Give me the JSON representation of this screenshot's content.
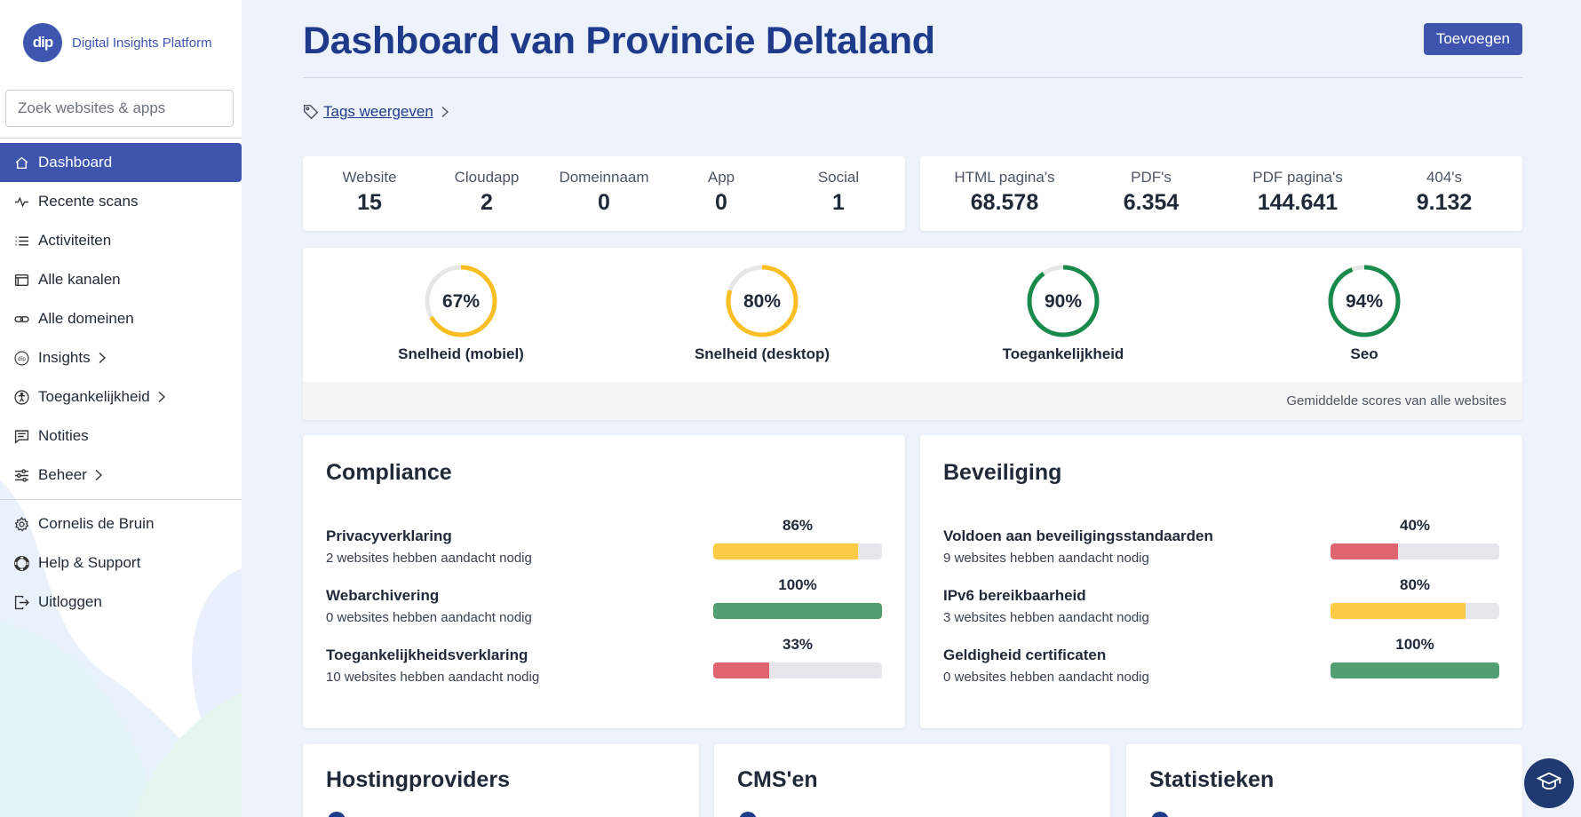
{
  "app": {
    "logo_text": "dip",
    "name": "Digital Insights Platform"
  },
  "search": {
    "placeholder": "Zoek websites & apps"
  },
  "sidebar": {
    "items": [
      {
        "label": "Dashboard",
        "icon": "home-icon",
        "active": true
      },
      {
        "label": "Recente scans",
        "icon": "activity-icon"
      },
      {
        "label": "Activiteiten",
        "icon": "list-icon"
      },
      {
        "label": "Alle kanalen",
        "icon": "browser-icon"
      },
      {
        "label": "Alle domeinen",
        "icon": "link-icon"
      },
      {
        "label": "Insights",
        "icon": "dip-icon",
        "has_submenu": true
      },
      {
        "label": "Toegankelijkheid",
        "icon": "accessibility-icon",
        "has_submenu": true
      },
      {
        "label": "Notities",
        "icon": "note-icon"
      },
      {
        "label": "Beheer",
        "icon": "sliders-icon",
        "has_submenu": true
      }
    ],
    "account": [
      {
        "label": "Cornelis de Bruin",
        "icon": "gear-icon"
      },
      {
        "label": "Help & Support",
        "icon": "lifebuoy-icon"
      },
      {
        "label": "Uitloggen",
        "icon": "logout-icon"
      }
    ]
  },
  "header": {
    "title": "Dashboard van Provincie Deltaland",
    "add_button": "Toevoegen"
  },
  "tags": {
    "label": "Tags weergeven"
  },
  "channel_counts": [
    {
      "label": "Website",
      "value": "15"
    },
    {
      "label": "Cloudapp",
      "value": "2"
    },
    {
      "label": "Domeinnaam",
      "value": "0"
    },
    {
      "label": "App",
      "value": "0"
    },
    {
      "label": "Social",
      "value": "1"
    }
  ],
  "page_counts": [
    {
      "label": "HTML pagina's",
      "value": "68.578"
    },
    {
      "label": "PDF's",
      "value": "6.354"
    },
    {
      "label": "PDF pagina's",
      "value": "144.641"
    },
    {
      "label": "404's",
      "value": "9.132"
    }
  ],
  "scores": {
    "items": [
      {
        "label": "Snelheid (mobiel)",
        "value": 67,
        "display": "67%",
        "color": "#fbbf24"
      },
      {
        "label": "Snelheid (desktop)",
        "value": 80,
        "display": "80%",
        "color": "#fbbf24"
      },
      {
        "label": "Toegankelijkheid",
        "value": 90,
        "display": "90%",
        "color": "#178a4c"
      },
      {
        "label": "Seo",
        "value": 94,
        "display": "94%",
        "color": "#178a4c"
      }
    ],
    "footer": "Gemiddelde scores van alle websites"
  },
  "compliance": {
    "title": "Compliance",
    "rows": [
      {
        "label": "Privacyverklaring",
        "sub": "2 websites hebben aandacht nodig",
        "value": 86,
        "display": "86%",
        "color": "#fbcb45"
      },
      {
        "label": "Webarchivering",
        "sub": "0 websites hebben aandacht nodig",
        "value": 100,
        "display": "100%",
        "color": "#529f73"
      },
      {
        "label": "Toegankelijkheidsverklaring",
        "sub": "10 websites hebben aandacht nodig",
        "value": 33,
        "display": "33%",
        "color": "#e06470"
      }
    ]
  },
  "security": {
    "title": "Beveiliging",
    "rows": [
      {
        "label": "Voldoen aan beveiligingsstandaarden",
        "sub": "9 websites hebben aandacht nodig",
        "value": 40,
        "display": "40%",
        "color": "#e06470"
      },
      {
        "label": "IPv6 bereikbaarheid",
        "sub": "3 websites hebben aandacht nodig",
        "value": 80,
        "display": "80%",
        "color": "#fbcb45"
      },
      {
        "label": "Geldigheid certificaten",
        "sub": "0 websites hebben aandacht nodig",
        "value": 100,
        "display": "100%",
        "color": "#529f73"
      }
    ]
  },
  "bottom_cards": [
    {
      "title": "Hostingproviders"
    },
    {
      "title": "CMS'en"
    },
    {
      "title": "Statistieken"
    }
  ],
  "help_fab": {
    "icon": "graduation-cap-icon"
  }
}
